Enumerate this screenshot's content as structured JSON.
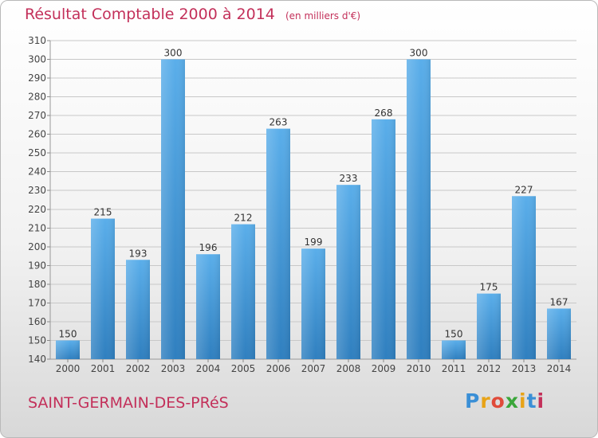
{
  "header": {
    "title": "Résultat Comptable 2000 à 2014",
    "subtitle": "(en milliers d'€)"
  },
  "footer": {
    "commune": "SAINT-GERMAIN-DES-PRéS",
    "logo_letters": [
      "P",
      "r",
      "o",
      "x",
      "i",
      "t",
      "i"
    ],
    "logo_colors": [
      "#3a8fd6",
      "#e8a317",
      "#e04b3a",
      "#3aa63a",
      "#e8a317",
      "#3a8fd6",
      "#c3305a"
    ]
  },
  "colors": {
    "bar_top": "#5aaeea",
    "bar_bottom": "#2f7fbf",
    "accent": "#c3305a",
    "grid": "#c8c8c8"
  },
  "chart_data": {
    "type": "bar",
    "categories": [
      "2000",
      "2001",
      "2002",
      "2003",
      "2004",
      "2005",
      "2006",
      "2007",
      "2008",
      "2009",
      "2010",
      "2011",
      "2012",
      "2013",
      "2014"
    ],
    "values": [
      150,
      215,
      193,
      300,
      196,
      212,
      263,
      199,
      233,
      268,
      300,
      150,
      175,
      227,
      167
    ],
    "ylim": [
      140,
      310
    ],
    "ytick_step": 10,
    "grid": true,
    "data_labels": true
  }
}
